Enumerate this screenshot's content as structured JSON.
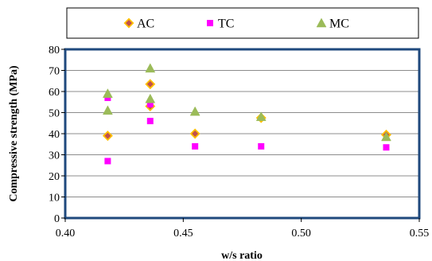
{
  "chart_data": {
    "type": "scatter",
    "xlabel": "w/s ratio",
    "ylabel": "Compressive strength (MPa)",
    "xlim": [
      0.4,
      0.55
    ],
    "ylim": [
      0,
      80
    ],
    "xticks": [
      "0.40",
      "0.45",
      "0.50",
      "0.55"
    ],
    "xtick_values": [
      0.4,
      0.45,
      0.5,
      0.55
    ],
    "yticks": [
      "0",
      "10",
      "20",
      "30",
      "40",
      "50",
      "60",
      "70",
      "80"
    ],
    "ytick_values": [
      0,
      10,
      20,
      30,
      40,
      50,
      60,
      70,
      80
    ],
    "grid": "horizontal",
    "legend": "top",
    "series": [
      {
        "name": "AC",
        "marker": "diamond",
        "color": "#c0504d",
        "edge_color": "#ffc000",
        "points": [
          [
            0.418,
            39
          ],
          [
            0.436,
            53
          ],
          [
            0.436,
            63.5
          ],
          [
            0.455,
            40
          ],
          [
            0.483,
            47.5
          ],
          [
            0.536,
            39.5
          ]
        ]
      },
      {
        "name": "TC",
        "marker": "square",
        "color": "#ff00ff",
        "edge_color": "#ff00ff",
        "points": [
          [
            0.418,
            27
          ],
          [
            0.418,
            57
          ],
          [
            0.436,
            46
          ],
          [
            0.436,
            54
          ],
          [
            0.455,
            34
          ],
          [
            0.483,
            34
          ],
          [
            0.536,
            33.5
          ]
        ]
      },
      {
        "name": "MC",
        "marker": "triangle",
        "color": "#9bbb59",
        "edge_color": "#9bbb59",
        "points": [
          [
            0.418,
            51
          ],
          [
            0.418,
            59
          ],
          [
            0.436,
            56.5
          ],
          [
            0.436,
            71
          ],
          [
            0.455,
            50.5
          ],
          [
            0.483,
            48
          ],
          [
            0.536,
            38.5
          ]
        ]
      }
    ]
  }
}
